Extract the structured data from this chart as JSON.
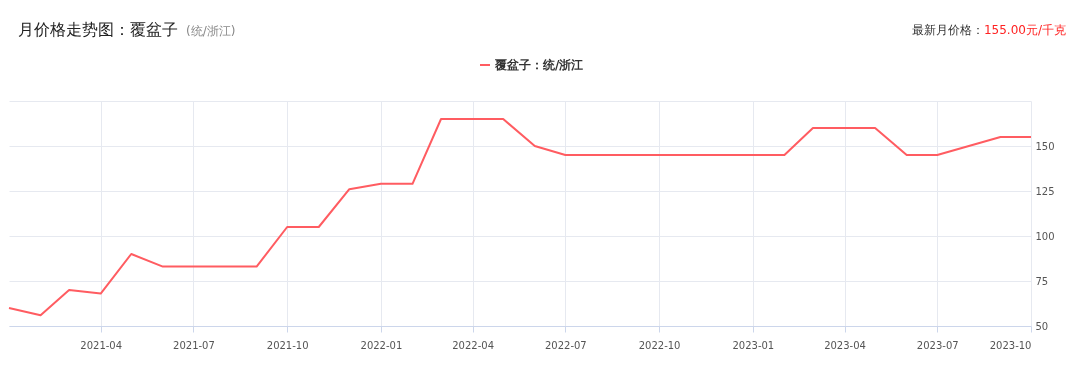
{
  "chart_data": {
    "type": "line",
    "title": "月价格走势图：覆盆子",
    "subtitle": "(统/浙江)",
    "annotations": [
      "最新月价格：",
      "155.00元/千克"
    ],
    "x": [
      "2021-01",
      "2021-02",
      "2021-03",
      "2021-04",
      "2021-05",
      "2021-06",
      "2021-07",
      "2021-08",
      "2021-09",
      "2021-10",
      "2021-11",
      "2021-12",
      "2022-01",
      "2022-02",
      "2022-03",
      "2022-04",
      "2022-05",
      "2022-06",
      "2022-07",
      "2022-08",
      "2022-09",
      "2022-10",
      "2022-11",
      "2022-12",
      "2023-01",
      "2023-02",
      "2023-03",
      "2023-04",
      "2023-05",
      "2023-06",
      "2023-07",
      "2023-08",
      "2023-09",
      "2023-10"
    ],
    "series": [
      {
        "name": "覆盆子：统/浙江",
        "color": "#ff5c61",
        "values": [
          60,
          56,
          70,
          68,
          90,
          83,
          83,
          83,
          83,
          105,
          105,
          126,
          129,
          129,
          165,
          165,
          165,
          150,
          145,
          145,
          145,
          145,
          145,
          145,
          145,
          145,
          160,
          160,
          160,
          145,
          145,
          150,
          155,
          155
        ]
      }
    ],
    "xlim": [
      "2021-01",
      "2023-10"
    ],
    "xticks": [
      "2021-04",
      "2021-07",
      "2021-10",
      "2022-01",
      "2022-04",
      "2022-07",
      "2022-10",
      "2023-01",
      "2023-04",
      "2023-07",
      "2023-10"
    ],
    "ylim": [
      50,
      175
    ],
    "yticks": [
      50,
      75,
      100,
      125,
      150,
      {
        "value": 175,
        "label": null
      }
    ],
    "grid": true,
    "legend": "top",
    "marker": "none",
    "line_style": "solid"
  }
}
